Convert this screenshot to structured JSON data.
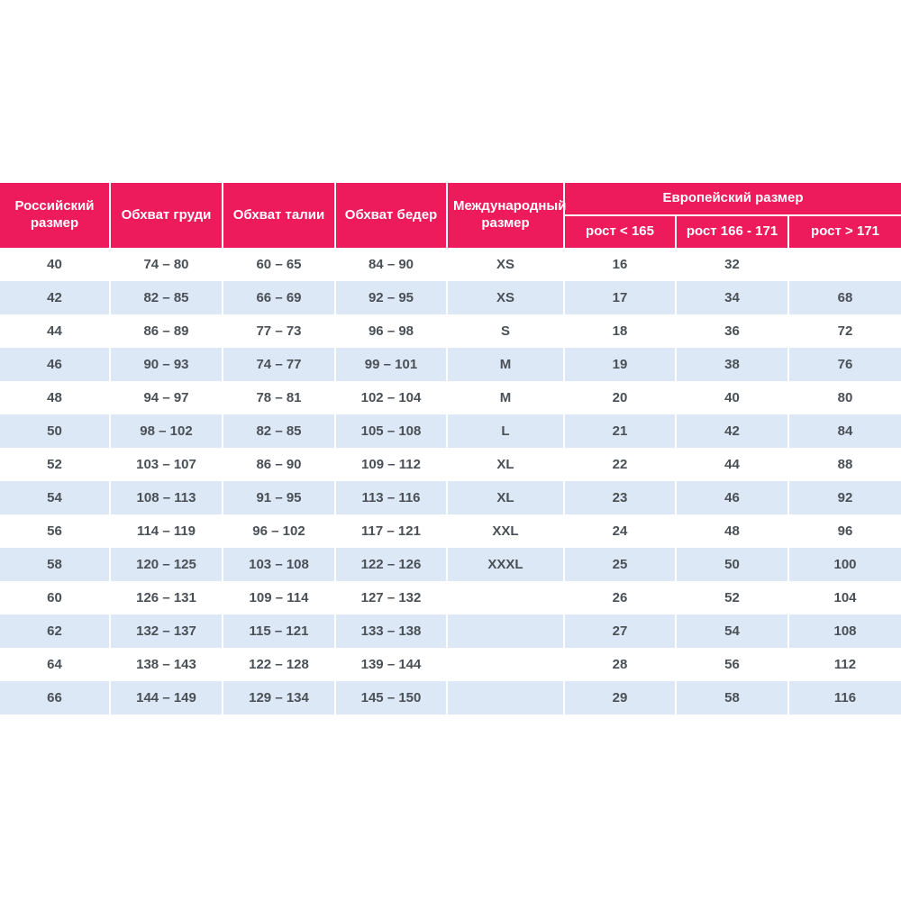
{
  "table": {
    "accent_color": "#ee1b5c",
    "alt_row_color": "#dce8f5",
    "cell_text_color": "#4a5056",
    "header_text_color": "#ffffff",
    "headers": {
      "russian_size": "Российский размер",
      "chest": "Обхват груди",
      "waist": "Обхват талии",
      "hips": "Обхват бедер",
      "international_size": "Международный размер",
      "european_size": "Европейский размер",
      "height_lt_165": "рост < 165",
      "height_166_171": "рост 166 - 171",
      "height_gt_171": "рост > 171"
    },
    "rows": [
      [
        "40",
        "74 – 80",
        "60 – 65",
        "84 – 90",
        "XS",
        "16",
        "32",
        ""
      ],
      [
        "42",
        "82 – 85",
        "66 – 69",
        "92 – 95",
        "XS",
        "17",
        "34",
        "68"
      ],
      [
        "44",
        "86 – 89",
        "77 – 73",
        "96 – 98",
        "S",
        "18",
        "36",
        "72"
      ],
      [
        "46",
        "90 – 93",
        "74 – 77",
        "99 – 101",
        "M",
        "19",
        "38",
        "76"
      ],
      [
        "48",
        "94 – 97",
        "78 – 81",
        "102 – 104",
        "M",
        "20",
        "40",
        "80"
      ],
      [
        "50",
        "98 – 102",
        "82 – 85",
        "105 – 108",
        "L",
        "21",
        "42",
        "84"
      ],
      [
        "52",
        "103 – 107",
        "86 – 90",
        "109 – 112",
        "XL",
        "22",
        "44",
        "88"
      ],
      [
        "54",
        "108 – 113",
        "91 – 95",
        "113 – 116",
        "XL",
        "23",
        "46",
        "92"
      ],
      [
        "56",
        "114 – 119",
        "96 – 102",
        "117 – 121",
        "XXL",
        "24",
        "48",
        "96"
      ],
      [
        "58",
        "120 – 125",
        "103 – 108",
        "122 – 126",
        "XXXL",
        "25",
        "50",
        "100"
      ],
      [
        "60",
        "126 – 131",
        "109 – 114",
        "127 – 132",
        "",
        "26",
        "52",
        "104"
      ],
      [
        "62",
        "132 – 137",
        "115 – 121",
        "133 – 138",
        "",
        "27",
        "54",
        "108"
      ],
      [
        "64",
        "138 – 143",
        "122 – 128",
        "139 – 144",
        "",
        "28",
        "56",
        "112"
      ],
      [
        "66",
        "144 – 149",
        "129 – 134",
        "145 – 150",
        "",
        "29",
        "58",
        "116"
      ]
    ]
  },
  "chart_data": {
    "type": "table",
    "title": "",
    "columns": [
      "Российский размер",
      "Обхват груди",
      "Обхват талии",
      "Обхват бедер",
      "Международный размер",
      "Европейский размер: рост < 165",
      "Европейский размер: рост 166 - 171",
      "Европейский размер: рост > 171"
    ],
    "rows": [
      [
        "40",
        "74 – 80",
        "60 – 65",
        "84 – 90",
        "XS",
        "16",
        "32",
        ""
      ],
      [
        "42",
        "82 – 85",
        "66 – 69",
        "92 – 95",
        "XS",
        "17",
        "34",
        "68"
      ],
      [
        "44",
        "86 – 89",
        "77 – 73",
        "96 – 98",
        "S",
        "18",
        "36",
        "72"
      ],
      [
        "46",
        "90 – 93",
        "74 – 77",
        "99 – 101",
        "M",
        "19",
        "38",
        "76"
      ],
      [
        "48",
        "94 – 97",
        "78 – 81",
        "102 – 104",
        "M",
        "20",
        "40",
        "80"
      ],
      [
        "50",
        "98 – 102",
        "82 – 85",
        "105 – 108",
        "L",
        "21",
        "42",
        "84"
      ],
      [
        "52",
        "103 – 107",
        "86 – 90",
        "109 – 112",
        "XL",
        "22",
        "44",
        "88"
      ],
      [
        "54",
        "108 – 113",
        "91 – 95",
        "113 – 116",
        "XL",
        "23",
        "46",
        "92"
      ],
      [
        "56",
        "114 – 119",
        "96 – 102",
        "117 – 121",
        "XXL",
        "24",
        "48",
        "96"
      ],
      [
        "58",
        "120 – 125",
        "103 – 108",
        "122 – 126",
        "XXXL",
        "25",
        "50",
        "100"
      ],
      [
        "60",
        "126 – 131",
        "109 – 114",
        "127 – 132",
        "",
        "26",
        "52",
        "104"
      ],
      [
        "62",
        "132 – 137",
        "115 – 121",
        "133 – 138",
        "",
        "27",
        "54",
        "108"
      ],
      [
        "64",
        "138 – 143",
        "122 – 128",
        "139 – 144",
        "",
        "28",
        "56",
        "112"
      ],
      [
        "66",
        "144 – 149",
        "129 – 134",
        "145 – 150",
        "",
        "29",
        "58",
        "116"
      ]
    ]
  }
}
